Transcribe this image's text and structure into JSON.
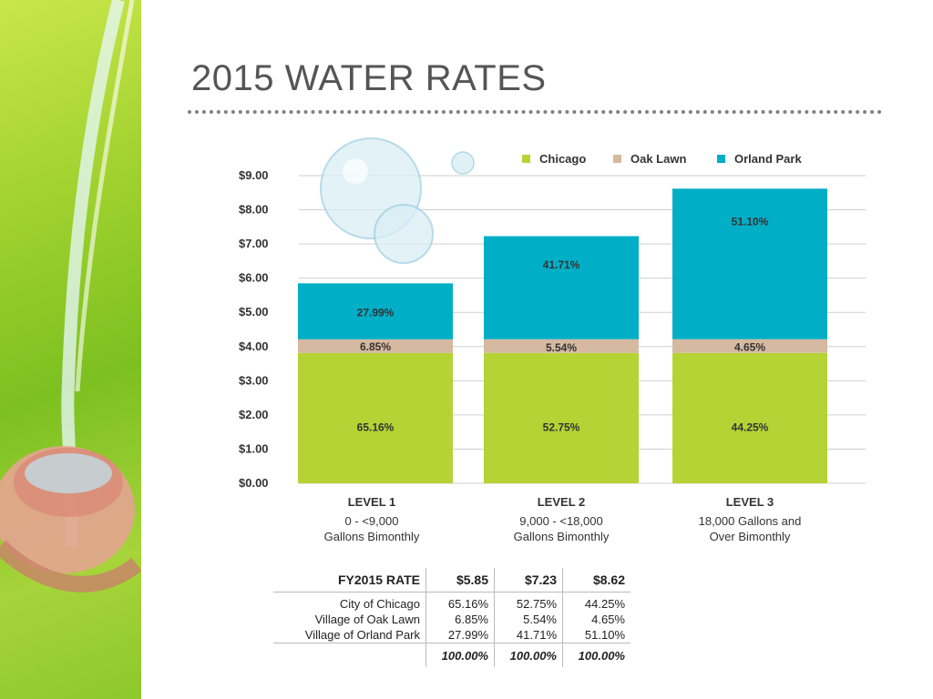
{
  "slide": {
    "title": "2015 WATER RATES"
  },
  "chart_data": {
    "type": "bar",
    "stacked": true,
    "categories": [
      "LEVEL 1",
      "LEVEL 2",
      "LEVEL 3"
    ],
    "category_descriptions": [
      [
        "0 - <9,000",
        "Gallons Bimonthly"
      ],
      [
        "9,000 - <18,000",
        "Gallons Bimonthly"
      ],
      [
        "18,000 Gallons and",
        "Over Bimonthly"
      ]
    ],
    "totals": [
      5.85,
      7.23,
      8.62
    ],
    "series": [
      {
        "name": "Chicago",
        "color": "#b5d334",
        "share_percent": [
          65.16,
          52.75,
          44.25
        ],
        "labels": [
          "65.16%",
          "52.75%",
          "44.25%"
        ]
      },
      {
        "name": "Oak Lawn",
        "color": "#d5b9a0",
        "share_percent": [
          6.85,
          5.54,
          4.65
        ],
        "labels": [
          "6.85%",
          "5.54%",
          "4.65%"
        ]
      },
      {
        "name": "Orland Park",
        "color": "#00aec6",
        "share_percent": [
          27.99,
          41.71,
          51.1
        ],
        "labels": [
          "27.99%",
          "41.71%",
          "51.10%"
        ]
      }
    ],
    "y_ticks": [
      0,
      1,
      2,
      3,
      4,
      5,
      6,
      7,
      8,
      9
    ],
    "y_tick_labels": [
      "$0.00",
      "$1.00",
      "$2.00",
      "$3.00",
      "$4.00",
      "$5.00",
      "$6.00",
      "$7.00",
      "$8.00",
      "$9.00"
    ],
    "ylim": [
      0,
      9
    ],
    "grid": true,
    "legend_position": "top-right",
    "title": "",
    "xlabel": "",
    "ylabel": ""
  },
  "rate_table": {
    "header": {
      "label": "FY2015 RATE",
      "values": [
        "$5.85",
        "$7.23",
        "$8.62"
      ]
    },
    "rows": [
      {
        "label": "City of Chicago",
        "values": [
          "65.16%",
          "52.75%",
          "44.25%"
        ]
      },
      {
        "label": "Village of Oak Lawn",
        "values": [
          "6.85%",
          "5.54%",
          "4.65%"
        ]
      },
      {
        "label": "Village of Orland Park",
        "values": [
          "27.99%",
          "41.71%",
          "51.10%"
        ]
      }
    ],
    "totals": [
      "100.00%",
      "100.00%",
      "100.00%"
    ]
  }
}
